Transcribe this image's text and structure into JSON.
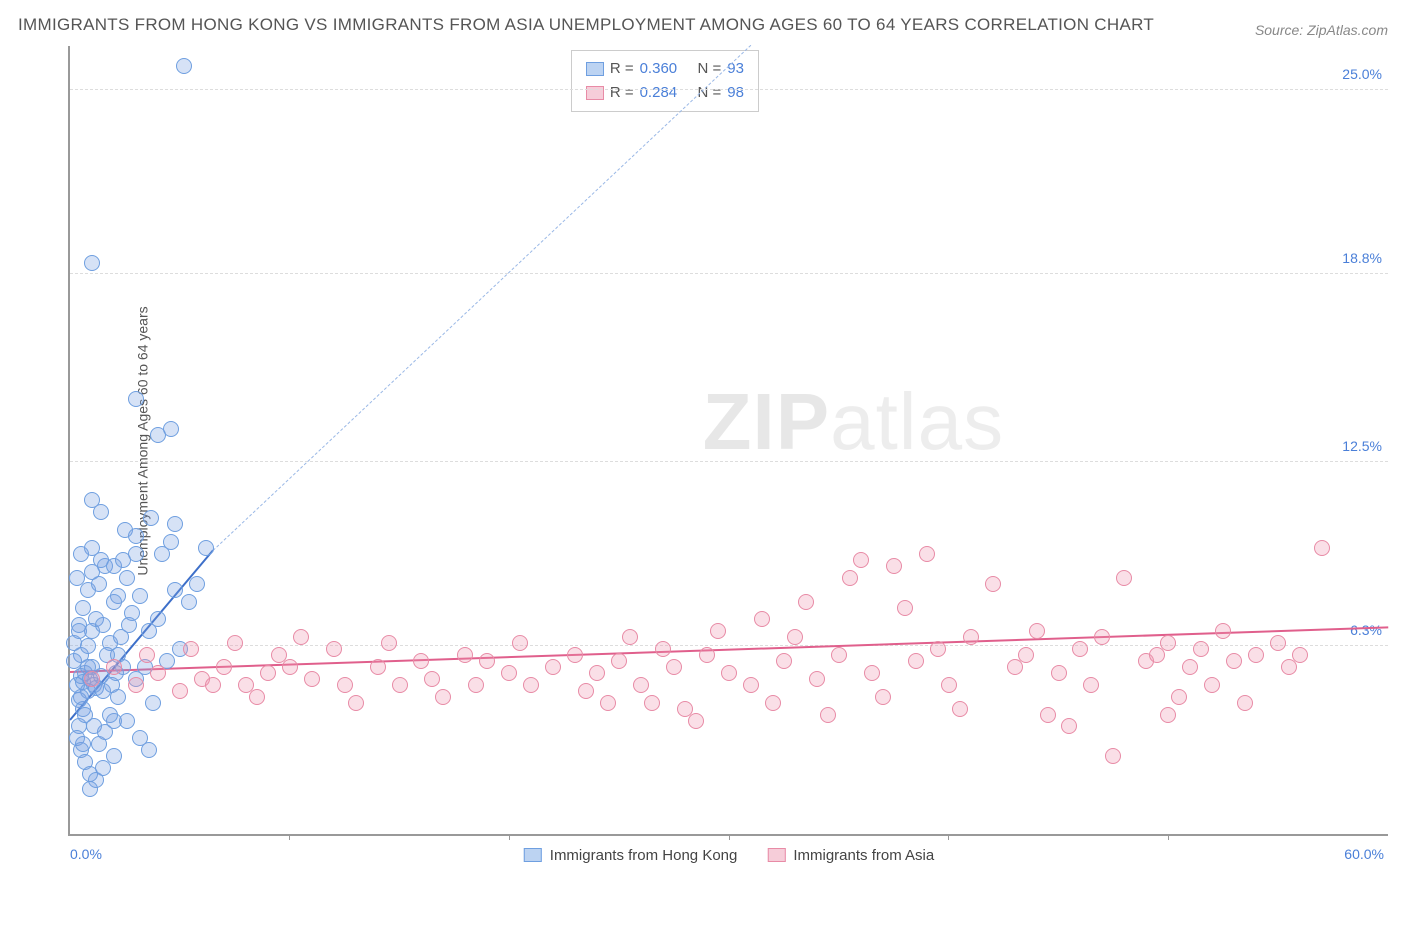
{
  "title": "IMMIGRANTS FROM HONG KONG VS IMMIGRANTS FROM ASIA UNEMPLOYMENT AMONG AGES 60 TO 64 YEARS CORRELATION CHART",
  "source_label": "Source: ZipAtlas.com",
  "ylabel": "Unemployment Among Ages 60 to 64 years",
  "watermark_bold": "ZIP",
  "watermark_light": "atlas",
  "chart": {
    "type": "scatter",
    "xlim": [
      0,
      60
    ],
    "ylim": [
      0,
      26.5
    ],
    "x_min_label": "0.0%",
    "x_max_label": "60.0%",
    "x_ticks_pct": [
      16.6,
      33.3,
      50.0,
      66.6,
      83.3
    ],
    "y_gridlines": [
      6.3,
      12.5,
      18.8,
      25.0
    ],
    "y_tick_labels": [
      "6.3%",
      "12.5%",
      "18.8%",
      "25.0%"
    ],
    "background_color": "#ffffff",
    "grid_color": "#dddddd",
    "axis_color": "#999999",
    "tick_label_color": "#4a7fd8",
    "marker_radius": 8,
    "marker_stroke_width": 1.4,
    "series": [
      {
        "id": "hk",
        "label": "Immigrants from Hong Kong",
        "fill": "rgba(120,160,225,0.30)",
        "stroke": "#6f9fe0",
        "swatch_fill": "#bcd3f2",
        "swatch_border": "#6f9fe0",
        "R": "0.360",
        "N": "93",
        "trend": {
          "x1": 0,
          "y1": 3.8,
          "x2": 6.5,
          "y2": 9.5,
          "solid_color": "#3d6fc9",
          "solid_width": 2.2,
          "dash_x2": 31,
          "dash_y2": 26.5,
          "dash_color": "#9ab8e6"
        },
        "points": [
          [
            0.3,
            5.0
          ],
          [
            0.5,
            5.3
          ],
          [
            0.6,
            5.1
          ],
          [
            0.8,
            4.8
          ],
          [
            0.4,
            4.5
          ],
          [
            0.7,
            5.4
          ],
          [
            0.9,
            5.2
          ],
          [
            1.0,
            5.6
          ],
          [
            1.1,
            5.0
          ],
          [
            0.5,
            6.0
          ],
          [
            0.2,
            5.8
          ],
          [
            0.6,
            4.2
          ],
          [
            0.8,
            6.3
          ],
          [
            1.2,
            4.9
          ],
          [
            1.4,
            5.3
          ],
          [
            0.4,
            3.6
          ],
          [
            0.3,
            3.2
          ],
          [
            0.5,
            2.8
          ],
          [
            0.7,
            2.4
          ],
          [
            0.9,
            2.0
          ],
          [
            1.3,
            3.0
          ],
          [
            1.6,
            3.4
          ],
          [
            2.0,
            3.8
          ],
          [
            1.0,
            6.8
          ],
          [
            1.2,
            7.2
          ],
          [
            1.5,
            7.0
          ],
          [
            1.8,
            6.4
          ],
          [
            2.2,
            6.0
          ],
          [
            2.4,
            5.6
          ],
          [
            0.6,
            7.6
          ],
          [
            0.8,
            8.2
          ],
          [
            1.0,
            8.8
          ],
          [
            1.3,
            8.4
          ],
          [
            1.6,
            9.0
          ],
          [
            1.0,
            9.6
          ],
          [
            1.4,
            9.2
          ],
          [
            2.0,
            9.0
          ],
          [
            2.6,
            8.6
          ],
          [
            2.2,
            8.0
          ],
          [
            0.4,
            7.0
          ],
          [
            2.8,
            7.4
          ],
          [
            3.2,
            8.0
          ],
          [
            3.6,
            6.8
          ],
          [
            4.0,
            7.2
          ],
          [
            4.2,
            9.4
          ],
          [
            4.6,
            9.8
          ],
          [
            4.8,
            8.2
          ],
          [
            3.0,
            5.2
          ],
          [
            3.4,
            5.6
          ],
          [
            3.8,
            4.4
          ],
          [
            4.4,
            5.8
          ],
          [
            5.0,
            6.2
          ],
          [
            2.5,
            10.2
          ],
          [
            3.0,
            10.0
          ],
          [
            3.7,
            10.6
          ],
          [
            4.8,
            10.4
          ],
          [
            1.8,
            4.0
          ],
          [
            2.2,
            4.6
          ],
          [
            2.6,
            3.8
          ],
          [
            2.0,
            2.6
          ],
          [
            1.5,
            2.2
          ],
          [
            1.2,
            1.8
          ],
          [
            0.9,
            1.5
          ],
          [
            3.2,
            3.2
          ],
          [
            3.6,
            2.8
          ],
          [
            3.0,
            9.4
          ],
          [
            2.0,
            7.8
          ],
          [
            2.4,
            9.2
          ],
          [
            0.5,
            9.4
          ],
          [
            1.0,
            11.2
          ],
          [
            1.4,
            10.8
          ],
          [
            0.3,
            8.6
          ],
          [
            5.4,
            7.8
          ],
          [
            5.8,
            8.4
          ],
          [
            6.2,
            9.6
          ],
          [
            4.0,
            13.4
          ],
          [
            4.6,
            13.6
          ],
          [
            3.0,
            14.6
          ],
          [
            1.0,
            19.2
          ],
          [
            5.2,
            25.8
          ],
          [
            0.7,
            4.0
          ],
          [
            1.1,
            3.6
          ],
          [
            1.5,
            4.8
          ],
          [
            0.2,
            6.4
          ],
          [
            0.4,
            6.8
          ],
          [
            0.8,
            5.6
          ],
          [
            1.7,
            6.0
          ],
          [
            2.1,
            5.4
          ],
          [
            0.6,
            3.0
          ],
          [
            1.9,
            5.0
          ],
          [
            2.3,
            6.6
          ],
          [
            2.7,
            7.0
          ],
          [
            0.5,
            4.6
          ]
        ]
      },
      {
        "id": "asia",
        "label": "Immigrants from Asia",
        "fill": "rgba(240,150,175,0.30)",
        "stroke": "#e88ba6",
        "swatch_fill": "#f6cdd9",
        "swatch_border": "#e88ba6",
        "R": "0.284",
        "N": "98",
        "trend": {
          "x1": 0,
          "y1": 5.4,
          "x2": 60,
          "y2": 6.9,
          "solid_color": "#e05f8c",
          "solid_width": 2.0
        },
        "points": [
          [
            1,
            5.2
          ],
          [
            2,
            5.6
          ],
          [
            3,
            5.0
          ],
          [
            3.5,
            6.0
          ],
          [
            4,
            5.4
          ],
          [
            5,
            4.8
          ],
          [
            5.5,
            6.2
          ],
          [
            6,
            5.2
          ],
          [
            6.5,
            5.0
          ],
          [
            7,
            5.6
          ],
          [
            7.5,
            6.4
          ],
          [
            8,
            5.0
          ],
          [
            8.5,
            4.6
          ],
          [
            9,
            5.4
          ],
          [
            9.5,
            6.0
          ],
          [
            10,
            5.6
          ],
          [
            10.5,
            6.6
          ],
          [
            11,
            5.2
          ],
          [
            12,
            6.2
          ],
          [
            12.5,
            5.0
          ],
          [
            13,
            4.4
          ],
          [
            14,
            5.6
          ],
          [
            14.5,
            6.4
          ],
          [
            15,
            5.0
          ],
          [
            16,
            5.8
          ],
          [
            16.5,
            5.2
          ],
          [
            17,
            4.6
          ],
          [
            18,
            6.0
          ],
          [
            18.5,
            5.0
          ],
          [
            19,
            5.8
          ],
          [
            20,
            5.4
          ],
          [
            20.5,
            6.4
          ],
          [
            21,
            5.0
          ],
          [
            22,
            5.6
          ],
          [
            23,
            6.0
          ],
          [
            23.5,
            4.8
          ],
          [
            24,
            5.4
          ],
          [
            24.5,
            4.4
          ],
          [
            25,
            5.8
          ],
          [
            25.5,
            6.6
          ],
          [
            26,
            5.0
          ],
          [
            26.5,
            4.4
          ],
          [
            27,
            6.2
          ],
          [
            27.5,
            5.6
          ],
          [
            28,
            4.2
          ],
          [
            28.5,
            3.8
          ],
          [
            29,
            6.0
          ],
          [
            29.5,
            6.8
          ],
          [
            30,
            5.4
          ],
          [
            31,
            5.0
          ],
          [
            31.5,
            7.2
          ],
          [
            32,
            4.4
          ],
          [
            32.5,
            5.8
          ],
          [
            33,
            6.6
          ],
          [
            33.5,
            7.8
          ],
          [
            34,
            5.2
          ],
          [
            34.5,
            4.0
          ],
          [
            35,
            6.0
          ],
          [
            35.5,
            8.6
          ],
          [
            36,
            9.2
          ],
          [
            36.5,
            5.4
          ],
          [
            37,
            4.6
          ],
          [
            37.5,
            9.0
          ],
          [
            38,
            7.6
          ],
          [
            38.5,
            5.8
          ],
          [
            39,
            9.4
          ],
          [
            39.5,
            6.2
          ],
          [
            40,
            5.0
          ],
          [
            40.5,
            4.2
          ],
          [
            41,
            6.6
          ],
          [
            42,
            8.4
          ],
          [
            43,
            5.6
          ],
          [
            43.5,
            6.0
          ],
          [
            44,
            6.8
          ],
          [
            45,
            5.4
          ],
          [
            46,
            6.2
          ],
          [
            46.5,
            5.0
          ],
          [
            47,
            6.6
          ],
          [
            48,
            8.6
          ],
          [
            49,
            5.8
          ],
          [
            49.5,
            6.0
          ],
          [
            50,
            6.4
          ],
          [
            50.5,
            4.6
          ],
          [
            51,
            5.6
          ],
          [
            51.5,
            6.2
          ],
          [
            52,
            5.0
          ],
          [
            52.5,
            6.8
          ],
          [
            53,
            5.8
          ],
          [
            54,
            6.0
          ],
          [
            47.5,
            2.6
          ],
          [
            50,
            4.0
          ],
          [
            55,
            6.4
          ],
          [
            55.5,
            5.6
          ],
          [
            56,
            6.0
          ],
          [
            57,
            9.6
          ],
          [
            53.5,
            4.4
          ],
          [
            44.5,
            4.0
          ],
          [
            45.5,
            3.6
          ]
        ]
      }
    ]
  },
  "legend_top": {
    "r_label": "R =",
    "n_label": "N ="
  }
}
